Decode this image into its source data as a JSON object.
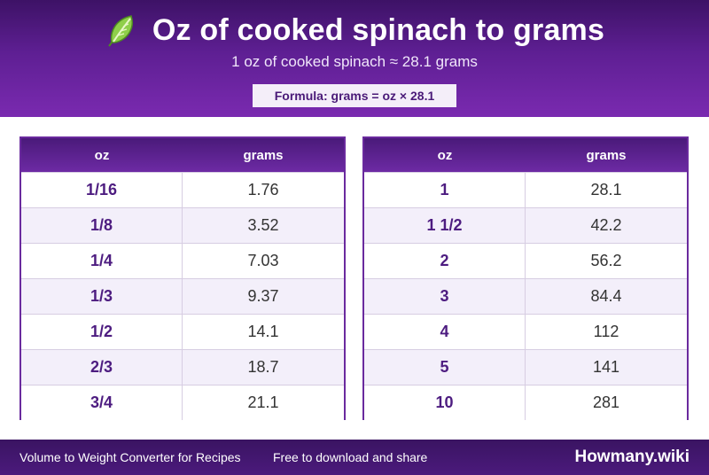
{
  "header": {
    "title": "Oz of cooked spinach to grams",
    "subtitle": "1 oz of cooked spinach ≈ 28.1 grams",
    "formula": "Formula: grams = oz × 28.1",
    "icon": "spinach-leaf-icon",
    "colors": {
      "primary": "#5e1f93",
      "dark": "#3d1266",
      "accent_text": "#4d1c80"
    }
  },
  "tables": [
    {
      "headers": [
        "oz",
        "grams"
      ],
      "rows": [
        [
          "1/16",
          "1.76"
        ],
        [
          "1/8",
          "3.52"
        ],
        [
          "1/4",
          "7.03"
        ],
        [
          "1/3",
          "9.37"
        ],
        [
          "1/2",
          "14.1"
        ],
        [
          "2/3",
          "18.7"
        ],
        [
          "3/4",
          "21.1"
        ]
      ]
    },
    {
      "headers": [
        "oz",
        "grams"
      ],
      "rows": [
        [
          "1",
          "28.1"
        ],
        [
          "1 1/2",
          "42.2"
        ],
        [
          "2",
          "56.2"
        ],
        [
          "3",
          "84.4"
        ],
        [
          "4",
          "112"
        ],
        [
          "5",
          "141"
        ],
        [
          "10",
          "281"
        ]
      ]
    }
  ],
  "footer": {
    "left_text": "Volume to Weight Converter for Recipes",
    "middle_text": "Free to download and share",
    "brand": "Howmany.wiki"
  }
}
